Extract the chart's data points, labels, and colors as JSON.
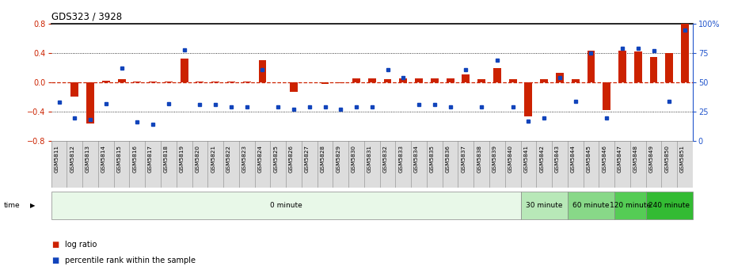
{
  "title": "GDS323 / 3928",
  "samples": [
    "GSM5811",
    "GSM5812",
    "GSM5813",
    "GSM5814",
    "GSM5815",
    "GSM5816",
    "GSM5817",
    "GSM5818",
    "GSM5819",
    "GSM5820",
    "GSM5821",
    "GSM5822",
    "GSM5823",
    "GSM5824",
    "GSM5825",
    "GSM5826",
    "GSM5827",
    "GSM5828",
    "GSM5829",
    "GSM5830",
    "GSM5831",
    "GSM5832",
    "GSM5833",
    "GSM5834",
    "GSM5835",
    "GSM5836",
    "GSM5837",
    "GSM5838",
    "GSM5839",
    "GSM5840",
    "GSM5841",
    "GSM5842",
    "GSM5843",
    "GSM5844",
    "GSM5845",
    "GSM5846",
    "GSM5847",
    "GSM5848",
    "GSM5849",
    "GSM5850",
    "GSM5851"
  ],
  "log_ratio": [
    0.0,
    -0.19,
    -0.56,
    0.02,
    0.04,
    0.01,
    0.01,
    0.01,
    0.33,
    0.01,
    0.01,
    0.01,
    0.01,
    0.3,
    0.0,
    -0.13,
    0.0,
    -0.02,
    -0.01,
    0.06,
    0.06,
    0.05,
    0.06,
    0.06,
    0.06,
    0.06,
    0.11,
    0.05,
    0.2,
    0.05,
    -0.46,
    0.05,
    0.13,
    0.05,
    0.44,
    -0.38,
    0.44,
    0.42,
    0.35,
    0.4,
    0.9
  ],
  "percentile": [
    33,
    20,
    18,
    32,
    62,
    16,
    14,
    32,
    78,
    31,
    31,
    29,
    29,
    61,
    29,
    27,
    29,
    29,
    27,
    29,
    29,
    61,
    54,
    31,
    31,
    29,
    61,
    29,
    69,
    29,
    17,
    20,
    54,
    34,
    75,
    20,
    79,
    79,
    77,
    34,
    95
  ],
  "ylim_left": [
    -0.8,
    0.8
  ],
  "ylim_right": [
    0,
    100
  ],
  "yticks_left": [
    -0.8,
    -0.4,
    0.0,
    0.4,
    0.8
  ],
  "yticks_right": [
    0,
    25,
    50,
    75,
    100
  ],
  "ytick_labels_right": [
    "0",
    "25",
    "50",
    "75",
    "100%"
  ],
  "bar_color": "#cc2200",
  "dot_color": "#1144bb",
  "zero_line_color": "#cc2200",
  "time_groups": [
    {
      "label": "0 minute",
      "start": 0,
      "end": 30,
      "color": "#e8f8e8"
    },
    {
      "label": "30 minute",
      "start": 30,
      "end": 33,
      "color": "#b8e8b8"
    },
    {
      "label": "60 minute",
      "start": 33,
      "end": 36,
      "color": "#88d888"
    },
    {
      "label": "120 minute",
      "start": 36,
      "end": 38,
      "color": "#55cc55"
    },
    {
      "label": "240 minute",
      "start": 38,
      "end": 41,
      "color": "#33bb33"
    }
  ],
  "left_axis_color": "#cc2200",
  "right_axis_color": "#2255cc",
  "xtick_bg_color": "#dddddd",
  "legend_items": [
    {
      "label": "log ratio",
      "color": "#cc2200"
    },
    {
      "label": "percentile rank within the sample",
      "color": "#1144bb"
    }
  ]
}
